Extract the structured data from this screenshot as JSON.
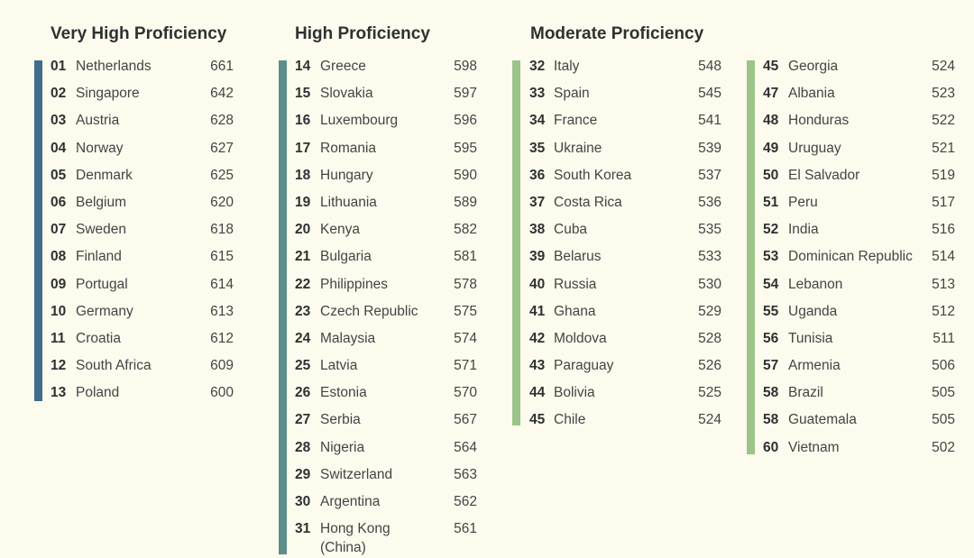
{
  "sections": [
    {
      "title": "Very High Proficiency",
      "color": "#3f6e8a"
    },
    {
      "title": "High Proficiency",
      "color": "#5c8f89"
    },
    {
      "title": "Moderate Proficiency",
      "color": "#9cc48a"
    }
  ],
  "columns": [
    [
      {
        "rank": "01",
        "country": "Netherlands",
        "score": "661"
      },
      {
        "rank": "02",
        "country": "Singapore",
        "score": "642"
      },
      {
        "rank": "03",
        "country": "Austria",
        "score": "628"
      },
      {
        "rank": "04",
        "country": "Norway",
        "score": "627"
      },
      {
        "rank": "05",
        "country": "Denmark",
        "score": "625"
      },
      {
        "rank": "06",
        "country": "Belgium",
        "score": "620"
      },
      {
        "rank": "07",
        "country": "Sweden",
        "score": "618"
      },
      {
        "rank": "08",
        "country": "Finland",
        "score": "615"
      },
      {
        "rank": "09",
        "country": "Portugal",
        "score": "614"
      },
      {
        "rank": "10",
        "country": "Germany",
        "score": "613"
      },
      {
        "rank": "11",
        "country": "Croatia",
        "score": "612"
      },
      {
        "rank": "12",
        "country": "South Africa",
        "score": "609"
      },
      {
        "rank": "13",
        "country": "Poland",
        "score": "600"
      }
    ],
    [
      {
        "rank": "14",
        "country": "Greece",
        "score": "598"
      },
      {
        "rank": "15",
        "country": "Slovakia",
        "score": "597"
      },
      {
        "rank": "16",
        "country": "Luxembourg",
        "score": "596"
      },
      {
        "rank": "17",
        "country": "Romania",
        "score": "595"
      },
      {
        "rank": "18",
        "country": "Hungary",
        "score": "590"
      },
      {
        "rank": "19",
        "country": "Lithuania",
        "score": "589"
      },
      {
        "rank": "20",
        "country": "Kenya",
        "score": "582"
      },
      {
        "rank": "21",
        "country": "Bulgaria",
        "score": "581"
      },
      {
        "rank": "22",
        "country": "Philippines",
        "score": "578"
      },
      {
        "rank": "23",
        "country": "Czech Republic",
        "score": "575"
      },
      {
        "rank": "24",
        "country": "Malaysia",
        "score": "574"
      },
      {
        "rank": "25",
        "country": "Latvia",
        "score": "571"
      },
      {
        "rank": "26",
        "country": "Estonia",
        "score": "570"
      },
      {
        "rank": "27",
        "country": "Serbia",
        "score": "567"
      },
      {
        "rank": "28",
        "country": "Nigeria",
        "score": "564"
      },
      {
        "rank": "29",
        "country": "Switzerland",
        "score": "563"
      },
      {
        "rank": "30",
        "country": "Argentina",
        "score": "562"
      },
      {
        "rank": "31",
        "country": "Hong Kong (China)",
        "score": "561"
      }
    ],
    [
      {
        "rank": "32",
        "country": "Italy",
        "score": "548"
      },
      {
        "rank": "33",
        "country": "Spain",
        "score": "545"
      },
      {
        "rank": "34",
        "country": "France",
        "score": "541"
      },
      {
        "rank": "35",
        "country": "Ukraine",
        "score": "539"
      },
      {
        "rank": "36",
        "country": "South Korea",
        "score": "537"
      },
      {
        "rank": "37",
        "country": "Costa Rica",
        "score": "536"
      },
      {
        "rank": "38",
        "country": "Cuba",
        "score": "535"
      },
      {
        "rank": "39",
        "country": "Belarus",
        "score": "533"
      },
      {
        "rank": "40",
        "country": "Russia",
        "score": "530"
      },
      {
        "rank": "41",
        "country": "Ghana",
        "score": "529"
      },
      {
        "rank": "42",
        "country": "Moldova",
        "score": "528"
      },
      {
        "rank": "43",
        "country": "Paraguay",
        "score": "526"
      },
      {
        "rank": "44",
        "country": "Bolivia",
        "score": "525"
      },
      {
        "rank": "45",
        "country": "Chile",
        "score": "524"
      }
    ],
    [
      {
        "rank": "45",
        "country": "Georgia",
        "score": "524"
      },
      {
        "rank": "47",
        "country": "Albania",
        "score": "523"
      },
      {
        "rank": "48",
        "country": "Honduras",
        "score": "522"
      },
      {
        "rank": "49",
        "country": "Uruguay",
        "score": "521"
      },
      {
        "rank": "50",
        "country": "El Salvador",
        "score": "519"
      },
      {
        "rank": "51",
        "country": "Peru",
        "score": "517"
      },
      {
        "rank": "52",
        "country": "India",
        "score": "516"
      },
      {
        "rank": "53",
        "country": "Dominican Republic",
        "score": "514"
      },
      {
        "rank": "54",
        "country": "Lebanon",
        "score": "513"
      },
      {
        "rank": "55",
        "country": "Uganda",
        "score": "512"
      },
      {
        "rank": "56",
        "country": "Tunisia",
        "score": "511"
      },
      {
        "rank": "57",
        "country": "Armenia",
        "score": "506"
      },
      {
        "rank": "58",
        "country": "Brazil",
        "score": "505"
      },
      {
        "rank": "58",
        "country": "Guatemala",
        "score": "505"
      },
      {
        "rank": "60",
        "country": "Vietnam",
        "score": "502"
      }
    ]
  ]
}
